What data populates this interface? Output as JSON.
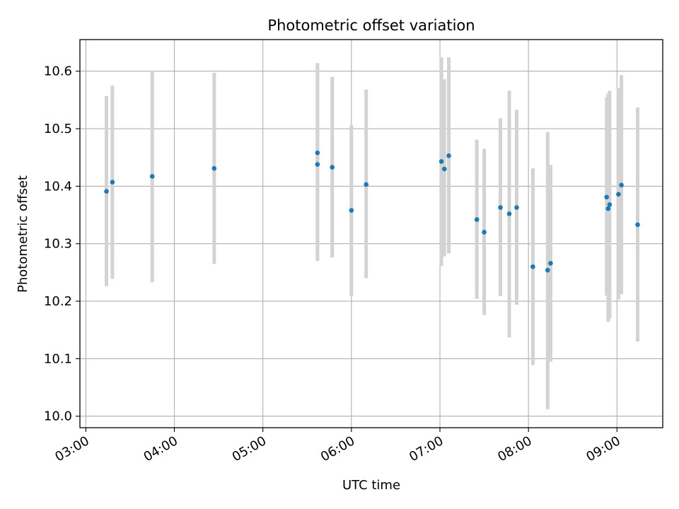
{
  "chart_data": {
    "type": "scatter",
    "title": "Photometric offset variation",
    "xlabel": "UTC time",
    "ylabel": "Photometric offset",
    "xlim": [
      "02:56",
      "09:31"
    ],
    "ylim": [
      9.98,
      10.655
    ],
    "x_ticks": [
      "03:00",
      "04:00",
      "05:00",
      "06:00",
      "07:00",
      "08:00",
      "09:00"
    ],
    "y_ticks": [
      "10.0",
      "10.1",
      "10.2",
      "10.3",
      "10.4",
      "10.5",
      "10.6"
    ],
    "grid": true,
    "marker_color": "#1f77b4",
    "errorbar_color": "#d3d3d3",
    "points": [
      {
        "time": "03:14",
        "y": 10.391,
        "low": 10.226,
        "high": 10.557
      },
      {
        "time": "03:18",
        "y": 10.407,
        "low": 10.239,
        "high": 10.575
      },
      {
        "time": "03:45",
        "y": 10.417,
        "low": 10.233,
        "high": 10.601
      },
      {
        "time": "04:27",
        "y": 10.431,
        "low": 10.265,
        "high": 10.597
      },
      {
        "time": "05:37",
        "y": 10.458,
        "low": 10.302,
        "high": 10.614
      },
      {
        "time": "05:37",
        "y": 10.438,
        "low": 10.27,
        "high": 10.606
      },
      {
        "time": "05:47",
        "y": 10.433,
        "low": 10.276,
        "high": 10.59
      },
      {
        "time": "06:00",
        "y": 10.358,
        "low": 10.209,
        "high": 10.506
      },
      {
        "time": "06:10",
        "y": 10.403,
        "low": 10.24,
        "high": 10.568
      },
      {
        "time": "07:01",
        "y": 10.443,
        "low": 10.261,
        "high": 10.624
      },
      {
        "time": "07:03",
        "y": 10.43,
        "low": 10.278,
        "high": 10.586
      },
      {
        "time": "07:06",
        "y": 10.453,
        "low": 10.283,
        "high": 10.624
      },
      {
        "time": "07:25",
        "y": 10.342,
        "low": 10.204,
        "high": 10.481
      },
      {
        "time": "07:30",
        "y": 10.32,
        "low": 10.176,
        "high": 10.465
      },
      {
        "time": "07:41",
        "y": 10.363,
        "low": 10.209,
        "high": 10.518
      },
      {
        "time": "07:47",
        "y": 10.352,
        "low": 10.137,
        "high": 10.566
      },
      {
        "time": "07:52",
        "y": 10.363,
        "low": 10.194,
        "high": 10.533
      },
      {
        "time": "08:03",
        "y": 10.26,
        "low": 10.089,
        "high": 10.431
      },
      {
        "time": "08:13",
        "y": 10.254,
        "low": 10.012,
        "high": 10.494
      },
      {
        "time": "08:15",
        "y": 10.266,
        "low": 10.095,
        "high": 10.437
      },
      {
        "time": "08:53",
        "y": 10.381,
        "low": 10.21,
        "high": 10.555
      },
      {
        "time": "08:54",
        "y": 10.361,
        "low": 10.164,
        "high": 10.561
      },
      {
        "time": "08:55",
        "y": 10.368,
        "low": 10.17,
        "high": 10.566
      },
      {
        "time": "09:01",
        "y": 10.386,
        "low": 10.203,
        "high": 10.571
      },
      {
        "time": "09:03",
        "y": 10.402,
        "low": 10.212,
        "high": 10.593
      },
      {
        "time": "09:14",
        "y": 10.333,
        "low": 10.13,
        "high": 10.537
      }
    ]
  }
}
